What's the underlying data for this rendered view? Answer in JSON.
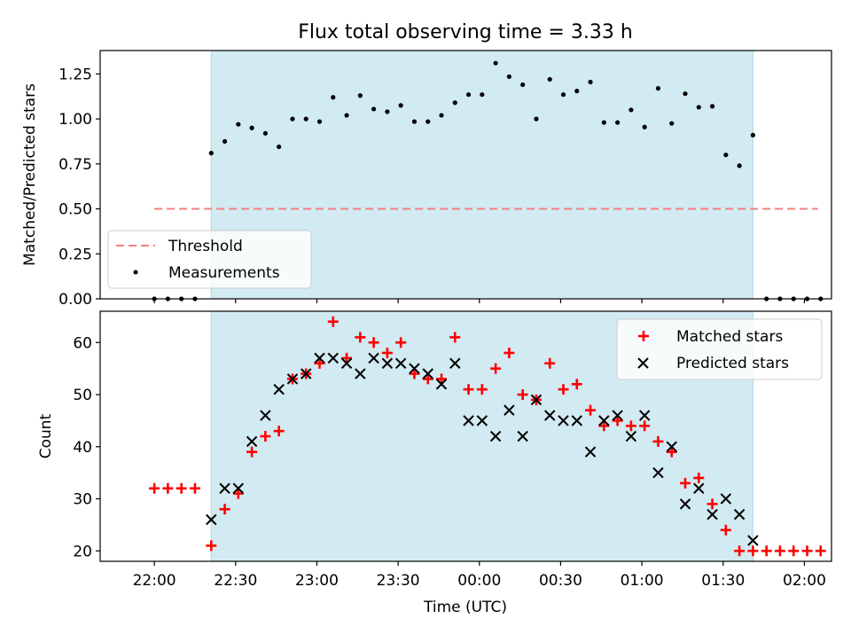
{
  "chart_data": [
    {
      "type": "scatter",
      "title": "Flux total observing time = 3.33 h",
      "xlabel": "",
      "ylabel": "Matched/Predicted stars",
      "ylim": [
        0,
        1.38
      ],
      "yticks": [
        "0.00",
        "0.25",
        "0.50",
        "0.75",
        "1.00",
        "1.25"
      ],
      "shaded_interval": [
        "22:21",
        "01:41"
      ],
      "legend": {
        "placement": "lower-left",
        "entries": [
          "Threshold",
          "Measurements"
        ]
      },
      "threshold": {
        "name": "Threshold",
        "value": 0.5,
        "x_start": "22:00",
        "x_end": "02:05",
        "color": "#f08080"
      },
      "measurements": {
        "name": "Measurements",
        "color": "#000000",
        "points": [
          [
            "22:00",
            0
          ],
          [
            "22:05",
            0
          ],
          [
            "22:10",
            0
          ],
          [
            "22:15",
            0
          ],
          [
            "22:21",
            0.81
          ],
          [
            "22:26",
            0.875
          ],
          [
            "22:31",
            0.97
          ],
          [
            "22:36",
            0.95
          ],
          [
            "22:41",
            0.92
          ],
          [
            "22:46",
            0.845
          ],
          [
            "22:51",
            1.0
          ],
          [
            "22:56",
            1.0
          ],
          [
            "23:01",
            0.985
          ],
          [
            "23:06",
            1.12
          ],
          [
            "23:11",
            1.02
          ],
          [
            "23:16",
            1.13
          ],
          [
            "23:21",
            1.055
          ],
          [
            "23:26",
            1.04
          ],
          [
            "23:31",
            1.075
          ],
          [
            "23:36",
            0.985
          ],
          [
            "23:41",
            0.985
          ],
          [
            "23:46",
            1.02
          ],
          [
            "23:51",
            1.09
          ],
          [
            "23:56",
            1.135
          ],
          [
            "00:01",
            1.135
          ],
          [
            "00:06",
            1.31
          ],
          [
            "00:11",
            1.235
          ],
          [
            "00:16",
            1.19
          ],
          [
            "00:21",
            1.0
          ],
          [
            "00:26",
            1.22
          ],
          [
            "00:31",
            1.135
          ],
          [
            "00:36",
            1.155
          ],
          [
            "00:41",
            1.205
          ],
          [
            "00:46",
            0.98
          ],
          [
            "00:51",
            0.98
          ],
          [
            "00:56",
            1.05
          ],
          [
            "01:01",
            0.955
          ],
          [
            "01:06",
            1.17
          ],
          [
            "01:11",
            0.975
          ],
          [
            "01:16",
            1.14
          ],
          [
            "01:21",
            1.065
          ],
          [
            "01:26",
            1.07
          ],
          [
            "01:31",
            0.8
          ],
          [
            "01:36",
            0.74
          ],
          [
            "01:41",
            0.91
          ],
          [
            "01:46",
            0
          ],
          [
            "01:51",
            0
          ],
          [
            "01:56",
            0
          ],
          [
            "02:01",
            0
          ],
          [
            "02:06",
            0
          ]
        ]
      }
    },
    {
      "type": "scatter",
      "title": "",
      "xlabel": "Time (UTC)",
      "ylabel": "Count",
      "ylim": [
        18,
        66
      ],
      "yticks": [
        "20",
        "30",
        "40",
        "50",
        "60"
      ],
      "xticks": [
        "22:00",
        "22:30",
        "23:00",
        "23:30",
        "00:00",
        "00:30",
        "01:00",
        "01:30",
        "02:00"
      ],
      "shaded_interval": [
        "22:21",
        "01:41"
      ],
      "legend": {
        "placement": "top-right",
        "entries": [
          "Matched stars",
          "Predicted stars"
        ]
      },
      "series": [
        {
          "name": "Matched stars",
          "marker": "plus",
          "color": "#ff0000",
          "points": [
            [
              "22:00",
              32
            ],
            [
              "22:05",
              32
            ],
            [
              "22:10",
              32
            ],
            [
              "22:15",
              32
            ],
            [
              "22:21",
              21
            ],
            [
              "22:26",
              28
            ],
            [
              "22:31",
              31
            ],
            [
              "22:36",
              39
            ],
            [
              "22:41",
              42
            ],
            [
              "22:46",
              43
            ],
            [
              "22:51",
              53
            ],
            [
              "22:56",
              54
            ],
            [
              "23:01",
              56
            ],
            [
              "23:06",
              64
            ],
            [
              "23:11",
              57
            ],
            [
              "23:16",
              61
            ],
            [
              "23:21",
              60
            ],
            [
              "23:26",
              58
            ],
            [
              "23:31",
              60
            ],
            [
              "23:36",
              54
            ],
            [
              "23:41",
              53
            ],
            [
              "23:46",
              53
            ],
            [
              "23:51",
              61
            ],
            [
              "23:56",
              51
            ],
            [
              "00:01",
              51
            ],
            [
              "00:06",
              55
            ],
            [
              "00:11",
              58
            ],
            [
              "00:16",
              50
            ],
            [
              "00:21",
              49
            ],
            [
              "00:26",
              56
            ],
            [
              "00:31",
              51
            ],
            [
              "00:36",
              52
            ],
            [
              "00:41",
              47
            ],
            [
              "00:46",
              44
            ],
            [
              "00:51",
              45
            ],
            [
              "00:56",
              44
            ],
            [
              "01:01",
              44
            ],
            [
              "01:06",
              41
            ],
            [
              "01:11",
              39
            ],
            [
              "01:16",
              33
            ],
            [
              "01:21",
              34
            ],
            [
              "01:26",
              29
            ],
            [
              "01:31",
              24
            ],
            [
              "01:36",
              20
            ],
            [
              "01:41",
              20
            ],
            [
              "01:46",
              20
            ],
            [
              "01:51",
              20
            ],
            [
              "01:56",
              20
            ],
            [
              "02:01",
              20
            ],
            [
              "02:06",
              20
            ]
          ]
        },
        {
          "name": "Predicted stars",
          "marker": "x",
          "color": "#000000",
          "points": [
            [
              "22:21",
              26
            ],
            [
              "22:26",
              32
            ],
            [
              "22:31",
              32
            ],
            [
              "22:36",
              41
            ],
            [
              "22:41",
              46
            ],
            [
              "22:46",
              51
            ],
            [
              "22:51",
              53
            ],
            [
              "22:56",
              54
            ],
            [
              "23:01",
              57
            ],
            [
              "23:06",
              57
            ],
            [
              "23:11",
              56
            ],
            [
              "23:16",
              54
            ],
            [
              "23:21",
              57
            ],
            [
              "23:26",
              56
            ],
            [
              "23:31",
              56
            ],
            [
              "23:36",
              55
            ],
            [
              "23:41",
              54
            ],
            [
              "23:46",
              52
            ],
            [
              "23:51",
              56
            ],
            [
              "23:56",
              45
            ],
            [
              "00:01",
              45
            ],
            [
              "00:06",
              42
            ],
            [
              "00:11",
              47
            ],
            [
              "00:16",
              42
            ],
            [
              "00:21",
              49
            ],
            [
              "00:26",
              46
            ],
            [
              "00:31",
              45
            ],
            [
              "00:36",
              45
            ],
            [
              "00:41",
              39
            ],
            [
              "00:46",
              45
            ],
            [
              "00:51",
              46
            ],
            [
              "00:56",
              42
            ],
            [
              "01:01",
              46
            ],
            [
              "01:06",
              35
            ],
            [
              "01:11",
              40
            ],
            [
              "01:16",
              29
            ],
            [
              "01:21",
              32
            ],
            [
              "01:26",
              27
            ],
            [
              "01:31",
              30
            ],
            [
              "01:36",
              27
            ],
            [
              "01:41",
              22
            ]
          ]
        }
      ]
    }
  ]
}
